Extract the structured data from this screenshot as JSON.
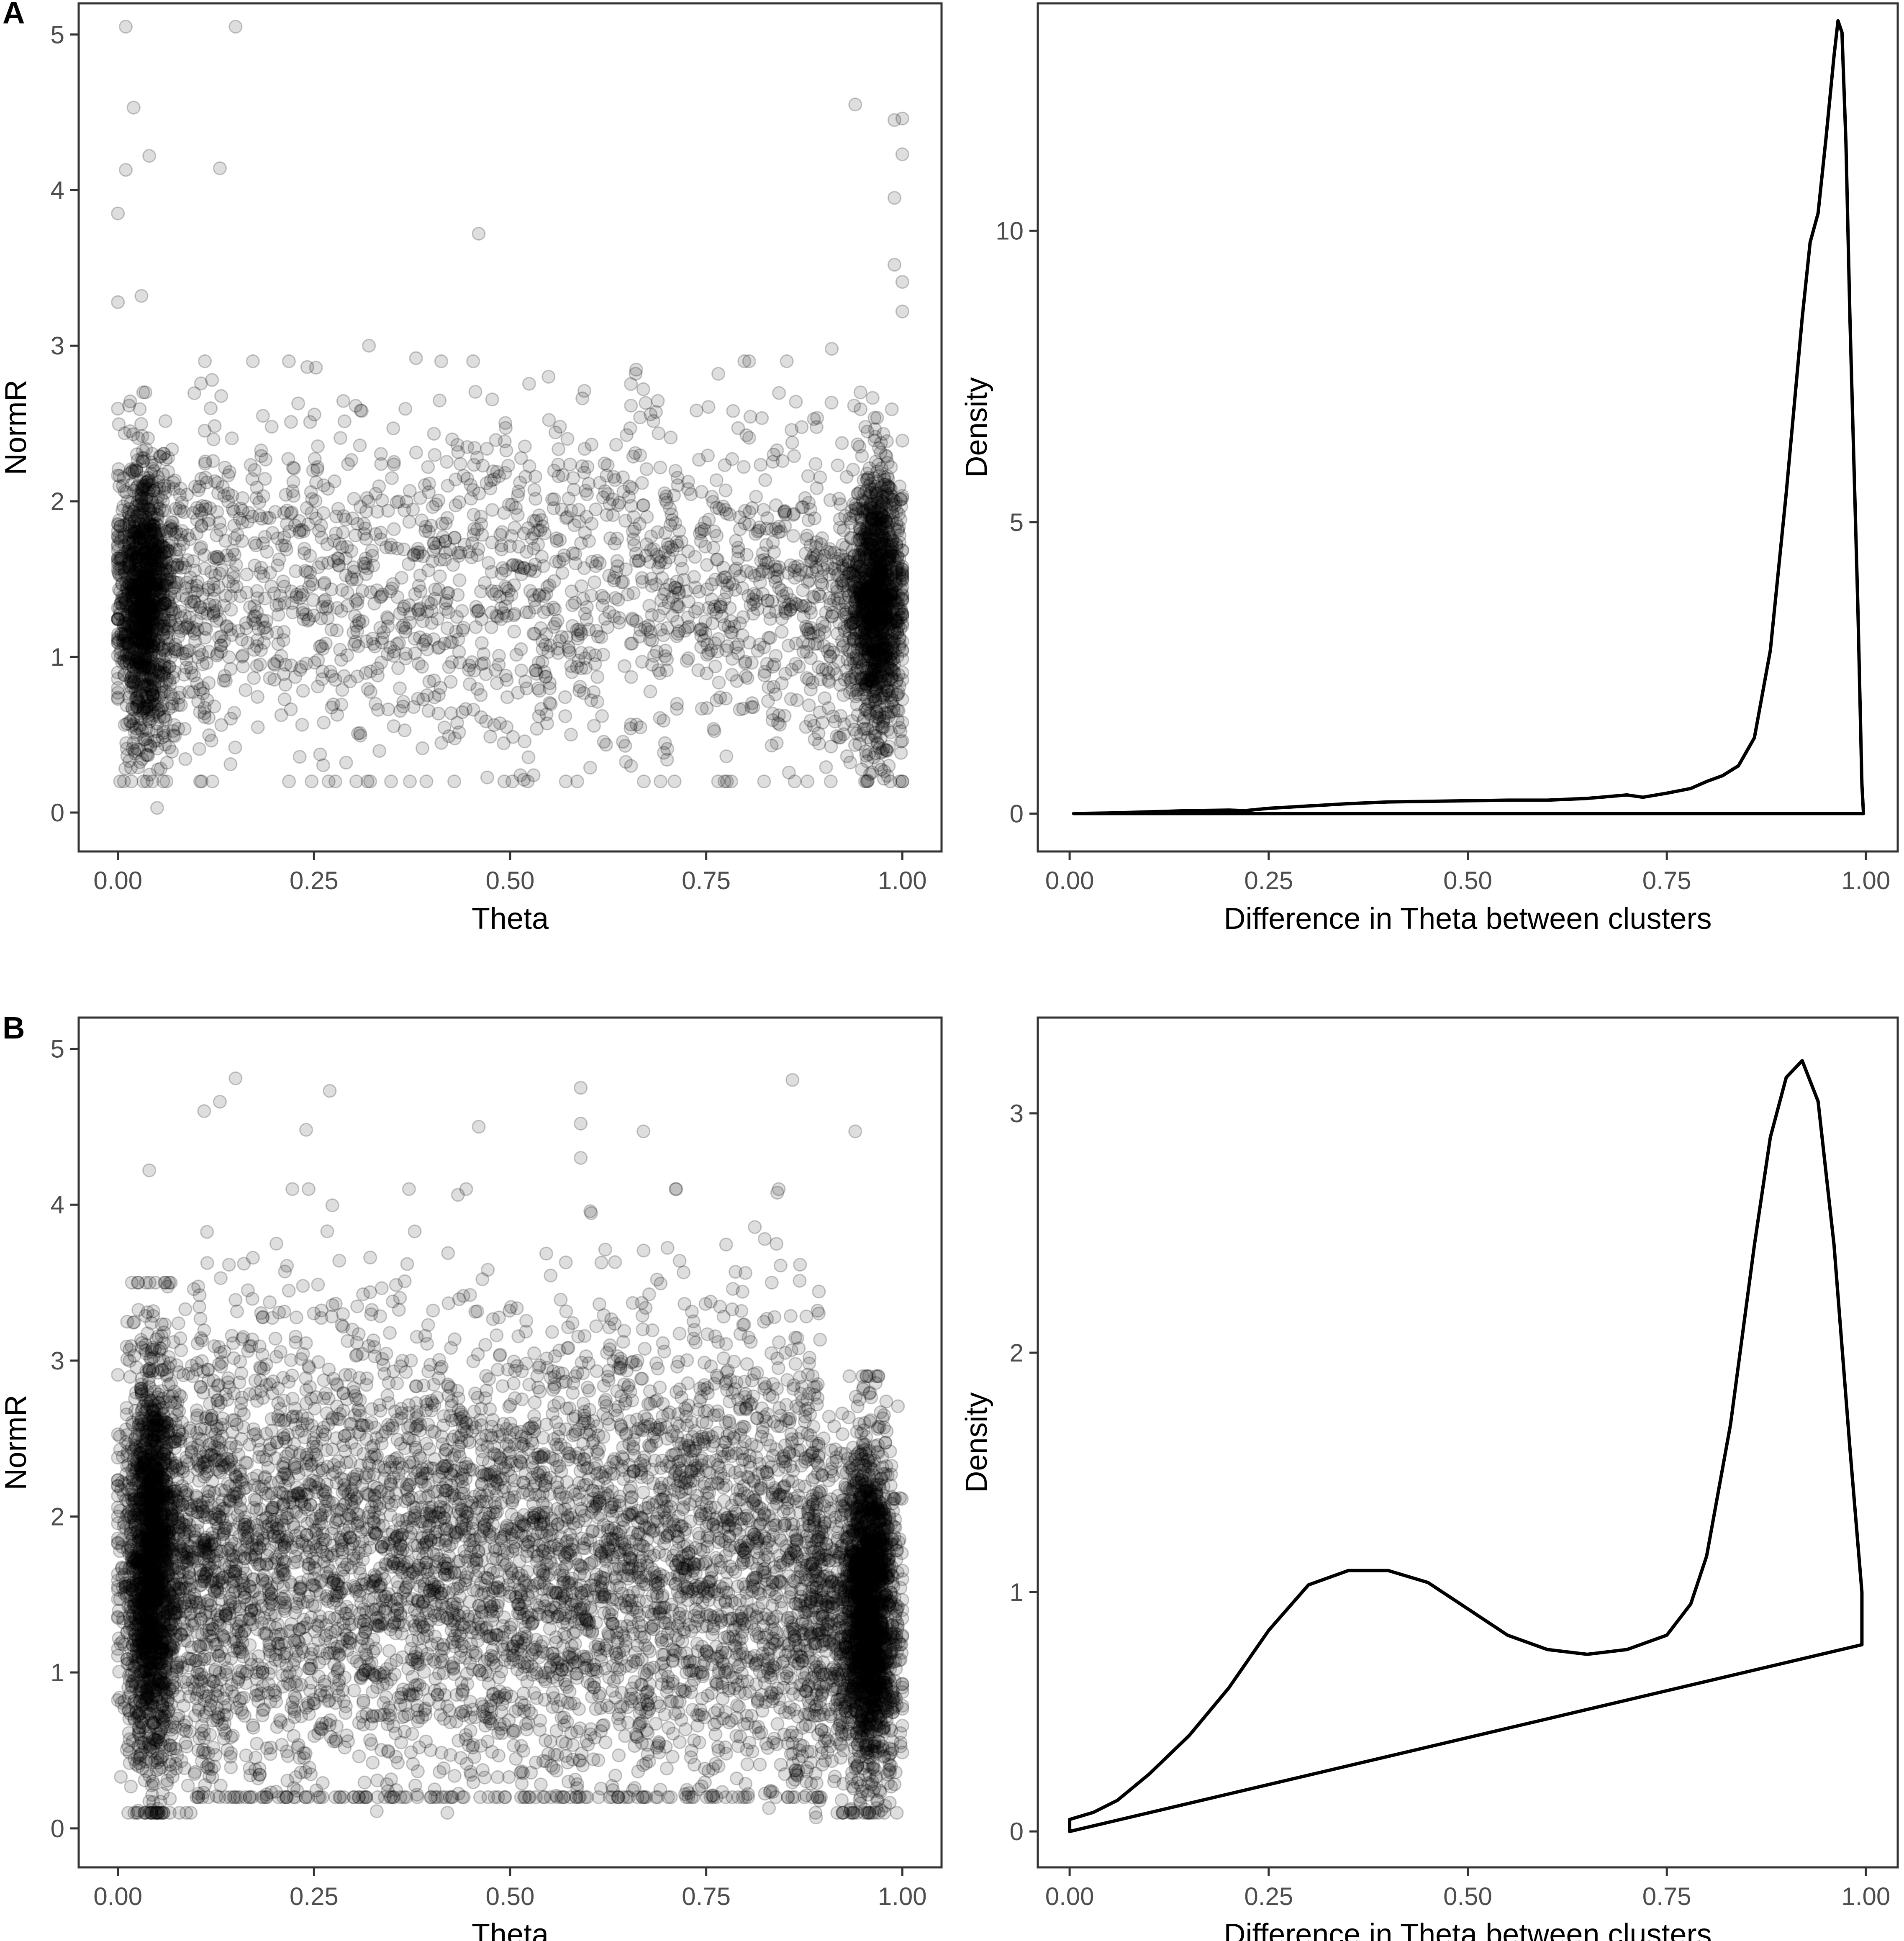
{
  "panels": [
    {
      "id": "A",
      "label": "A"
    },
    {
      "id": "B",
      "label": "B"
    }
  ],
  "chart_data": [
    {
      "panel": "A",
      "type": "scatter",
      "xlabel": "Theta",
      "ylabel": "NormR",
      "xlim": [
        -0.05,
        1.05
      ],
      "ylim": [
        -0.25,
        5.2
      ],
      "xticks": [
        "0.00",
        "0.25",
        "0.50",
        "0.75",
        "1.00"
      ],
      "xtick_values": [
        0,
        0.25,
        0.5,
        0.75,
        1.0
      ],
      "yticks": [
        "0",
        "1",
        "2",
        "3",
        "4",
        "5"
      ],
      "ytick_values": [
        0,
        1,
        2,
        3,
        4,
        5
      ],
      "point_color": "#000000",
      "point_alpha": 0.13,
      "distribution": {
        "left_cluster": {
          "theta_center": 0.03,
          "normr_range": [
            0.3,
            2.4
          ],
          "density": "very high"
        },
        "right_cluster": {
          "theta_center": 0.97,
          "normr_range": [
            0.3,
            2.4
          ],
          "density": "very high"
        },
        "middle": {
          "theta_range": [
            0.1,
            0.9
          ],
          "normr_range": [
            0.2,
            2.9
          ],
          "density": "sparse"
        }
      },
      "outliers": [
        {
          "x": 0.01,
          "y": 5.2
        },
        {
          "x": 0.15,
          "y": 5.15
        },
        {
          "x": 0.02,
          "y": 4.53
        },
        {
          "x": 0.04,
          "y": 4.22
        },
        {
          "x": 0.01,
          "y": 4.13
        },
        {
          "x": 0.13,
          "y": 4.14
        },
        {
          "x": 0.0,
          "y": 3.85
        },
        {
          "x": 0.46,
          "y": 3.72
        },
        {
          "x": 0.03,
          "y": 3.32
        },
        {
          "x": 0.0,
          "y": 3.28
        },
        {
          "x": 0.94,
          "y": 4.55
        },
        {
          "x": 0.99,
          "y": 4.45
        },
        {
          "x": 1.0,
          "y": 4.46
        },
        {
          "x": 1.0,
          "y": 4.23
        },
        {
          "x": 0.99,
          "y": 3.95
        },
        {
          "x": 0.99,
          "y": 3.52
        },
        {
          "x": 1.0,
          "y": 3.41
        },
        {
          "x": 1.0,
          "y": 3.22
        },
        {
          "x": 0.91,
          "y": 2.98
        },
        {
          "x": 0.32,
          "y": 3.0
        },
        {
          "x": 0.38,
          "y": 2.92
        },
        {
          "x": 0.05,
          "y": 0.03
        },
        {
          "x": 0.66,
          "y": 2.82
        },
        {
          "x": 0.12,
          "y": 2.78
        }
      ]
    },
    {
      "panel": "A",
      "type": "line",
      "xlabel": "Difference in Theta between clusters",
      "ylabel": "Density",
      "xlim": [
        -0.04,
        1.04
      ],
      "ylim": [
        -0.65,
        13.9
      ],
      "xticks": [
        "0.00",
        "0.25",
        "0.50",
        "0.75",
        "1.00"
      ],
      "xtick_values": [
        0,
        0.25,
        0.5,
        0.75,
        1.0
      ],
      "yticks": [
        "0",
        "5",
        "10"
      ],
      "ytick_values": [
        0,
        5,
        10
      ],
      "x": [
        0.005,
        0.05,
        0.1,
        0.15,
        0.2,
        0.22,
        0.25,
        0.3,
        0.35,
        0.4,
        0.45,
        0.5,
        0.55,
        0.6,
        0.65,
        0.7,
        0.72,
        0.75,
        0.78,
        0.8,
        0.82,
        0.84,
        0.86,
        0.88,
        0.9,
        0.92,
        0.93,
        0.94,
        0.95,
        0.96,
        0.965,
        0.97,
        0.975,
        0.98,
        0.99,
        0.995,
        0.997
      ],
      "y": [
        0.0,
        0.01,
        0.03,
        0.05,
        0.06,
        0.05,
        0.09,
        0.13,
        0.17,
        0.2,
        0.21,
        0.22,
        0.23,
        0.23,
        0.26,
        0.32,
        0.28,
        0.35,
        0.43,
        0.55,
        0.65,
        0.82,
        1.3,
        2.8,
        5.5,
        8.5,
        9.8,
        10.3,
        11.6,
        13.0,
        13.6,
        13.4,
        11.5,
        8.5,
        3.5,
        0.5,
        0.0
      ]
    },
    {
      "panel": "B",
      "type": "scatter",
      "xlabel": "Theta",
      "ylabel": "NormR",
      "xlim": [
        -0.05,
        1.05
      ],
      "ylim": [
        -0.25,
        5.2
      ],
      "xticks": [
        "0.00",
        "0.25",
        "0.50",
        "0.75",
        "1.00"
      ],
      "xtick_values": [
        0,
        0.25,
        0.5,
        0.75,
        1.0
      ],
      "yticks": [
        "0",
        "1",
        "2",
        "3",
        "4",
        "5"
      ],
      "ytick_values": [
        0,
        1,
        2,
        3,
        4,
        5
      ],
      "point_color": "#000000",
      "point_alpha": 0.13,
      "distribution": {
        "left_cluster": {
          "theta_center": 0.04,
          "normr_range": [
            0.2,
            3.2
          ],
          "density": "very high"
        },
        "right_cluster": {
          "theta_center": 0.96,
          "normr_range": [
            0.2,
            2.6
          ],
          "density": "very high"
        },
        "middle": {
          "theta_range": [
            0.1,
            0.9
          ],
          "normr_range": [
            0.2,
            4.1
          ],
          "density": "high"
        }
      },
      "outliers": [
        {
          "x": 0.15,
          "y": 4.81
        },
        {
          "x": 0.27,
          "y": 4.73
        },
        {
          "x": 0.59,
          "y": 4.75
        },
        {
          "x": 0.86,
          "y": 4.8
        },
        {
          "x": 0.13,
          "y": 4.66
        },
        {
          "x": 0.11,
          "y": 4.6
        },
        {
          "x": 0.24,
          "y": 4.48
        },
        {
          "x": 0.46,
          "y": 4.5
        },
        {
          "x": 0.59,
          "y": 4.52
        },
        {
          "x": 0.67,
          "y": 4.47
        },
        {
          "x": 0.94,
          "y": 4.47
        },
        {
          "x": 0.04,
          "y": 4.22
        },
        {
          "x": 0.59,
          "y": 4.3
        },
        {
          "x": 0.42,
          "y": 0.1
        },
        {
          "x": 0.33,
          "y": 0.11
        },
        {
          "x": 0.89,
          "y": 0.07
        },
        {
          "x": 0.83,
          "y": 0.13
        }
      ]
    },
    {
      "panel": "B",
      "type": "line",
      "xlabel": "Difference in Theta between clusters",
      "ylabel": "Density",
      "xlim": [
        -0.04,
        1.04
      ],
      "ylim": [
        -0.15,
        3.4
      ],
      "xticks": [
        "0.00",
        "0.25",
        "0.50",
        "0.75",
        "1.00"
      ],
      "xtick_values": [
        0,
        0.25,
        0.5,
        0.75,
        1.0
      ],
      "yticks": [
        "0",
        "1",
        "2",
        "3"
      ],
      "ytick_values": [
        0,
        1,
        2,
        3
      ],
      "x": [
        0.0,
        0.03,
        0.06,
        0.1,
        0.15,
        0.2,
        0.25,
        0.3,
        0.35,
        0.4,
        0.45,
        0.5,
        0.55,
        0.6,
        0.65,
        0.7,
        0.75,
        0.78,
        0.8,
        0.83,
        0.86,
        0.88,
        0.9,
        0.92,
        0.94,
        0.96,
        0.98,
        0.995,
        0.995
      ],
      "y": [
        0.05,
        0.08,
        0.13,
        0.24,
        0.4,
        0.6,
        0.84,
        1.03,
        1.09,
        1.09,
        1.04,
        0.93,
        0.82,
        0.76,
        0.74,
        0.76,
        0.82,
        0.95,
        1.15,
        1.7,
        2.45,
        2.9,
        3.15,
        3.22,
        3.05,
        2.45,
        1.6,
        1.0,
        0.78
      ]
    }
  ]
}
